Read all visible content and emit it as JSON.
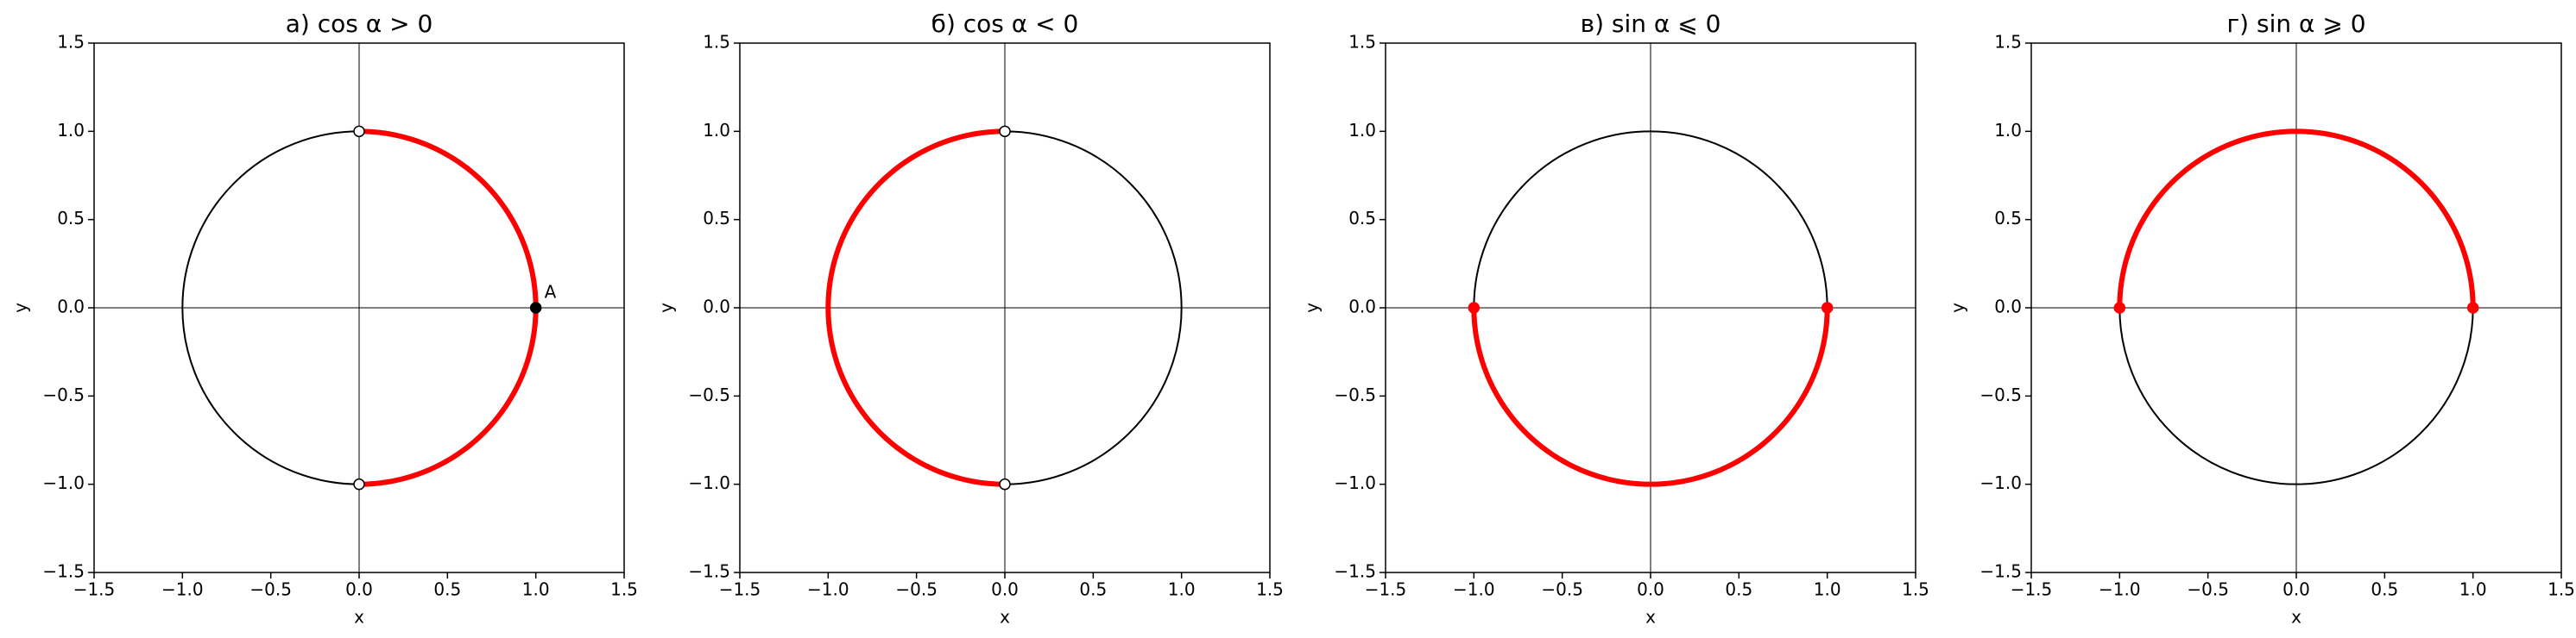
{
  "chart_data": [
    {
      "type": "unit-circle",
      "title": "а) cos α > 0",
      "xlabel": "x",
      "ylabel": "y",
      "xlim": [
        -1.5,
        1.5
      ],
      "ylim": [
        -1.5,
        1.5
      ],
      "xticks": [
        {
          "value": -1.5,
          "label": "−1.5"
        },
        {
          "value": -1,
          "label": "−1.0"
        },
        {
          "value": -0.5,
          "label": "−0.5"
        },
        {
          "value": 0,
          "label": "0.0"
        },
        0.5,
        {
          "value": 1,
          "label": "1.0"
        },
        1.5
      ],
      "yticks": [
        {
          "value": -1.5,
          "label": "−1.5"
        },
        {
          "value": -1,
          "label": "−1.0"
        },
        {
          "value": -0.5,
          "label": "−0.5"
        },
        {
          "value": 0,
          "label": "0.0"
        },
        0.5,
        {
          "value": 1,
          "label": "1.0"
        },
        1.5
      ],
      "circle": {
        "radius": 1,
        "color": "#000000"
      },
      "arc": {
        "start": -90,
        "end": 90,
        "color": "#ff0000"
      },
      "points": [
        {
          "x": 0,
          "y": 1,
          "color": "#ffffff",
          "edgecolor": "#000000"
        },
        {
          "x": 0,
          "y": -1,
          "color": "#ffffff",
          "edgecolor": "#000000"
        },
        {
          "x": 1,
          "y": 0,
          "color": "#000000",
          "edgecolor": "#000000"
        }
      ],
      "annotations": [
        {
          "text": "A",
          "x": 1,
          "y": 0
        }
      ]
    },
    {
      "type": "unit-circle",
      "title": "б) cos α < 0",
      "xlabel": "x",
      "ylabel": "y",
      "xlim": [
        -1.5,
        1.5
      ],
      "ylim": [
        -1.5,
        1.5
      ],
      "xticks": [
        {
          "value": -1.5,
          "label": "−1.5"
        },
        {
          "value": -1,
          "label": "−1.0"
        },
        {
          "value": -0.5,
          "label": "−0.5"
        },
        {
          "value": 0,
          "label": "0.0"
        },
        0.5,
        {
          "value": 1,
          "label": "1.0"
        },
        1.5
      ],
      "yticks": [
        {
          "value": -1.5,
          "label": "−1.5"
        },
        {
          "value": -1,
          "label": "−1.0"
        },
        {
          "value": -0.5,
          "label": "−0.5"
        },
        {
          "value": 0,
          "label": "0.0"
        },
        0.5,
        {
          "value": 1,
          "label": "1.0"
        },
        1.5
      ],
      "circle": {
        "radius": 1,
        "color": "#000000"
      },
      "arc": {
        "start": 90,
        "end": 270,
        "color": "#ff0000"
      },
      "points": [
        {
          "x": 0,
          "y": 1,
          "color": "#ffffff",
          "edgecolor": "#000000"
        },
        {
          "x": 0,
          "y": -1,
          "color": "#ffffff",
          "edgecolor": "#000000"
        }
      ],
      "annotations": []
    },
    {
      "type": "unit-circle",
      "title": "в) sin α ⩽ 0",
      "xlabel": "x",
      "ylabel": "y",
      "xlim": [
        -1.5,
        1.5
      ],
      "ylim": [
        -1.5,
        1.5
      ],
      "xticks": [
        {
          "value": -1.5,
          "label": "−1.5"
        },
        {
          "value": -1,
          "label": "−1.0"
        },
        {
          "value": -0.5,
          "label": "−0.5"
        },
        {
          "value": 0,
          "label": "0.0"
        },
        0.5,
        {
          "value": 1,
          "label": "1.0"
        },
        1.5
      ],
      "yticks": [
        {
          "value": -1.5,
          "label": "−1.5"
        },
        {
          "value": -1,
          "label": "−1.0"
        },
        {
          "value": -0.5,
          "label": "−0.5"
        },
        {
          "value": 0,
          "label": "0.0"
        },
        0.5,
        {
          "value": 1,
          "label": "1.0"
        },
        1.5
      ],
      "circle": {
        "radius": 1,
        "color": "#000000"
      },
      "arc": {
        "start": 180,
        "end": 360,
        "color": "#ff0000"
      },
      "points": [
        {
          "x": -1,
          "y": 0,
          "color": "#ff0000",
          "edgecolor": "#ff0000"
        },
        {
          "x": 1,
          "y": 0,
          "color": "#ff0000",
          "edgecolor": "#ff0000"
        }
      ],
      "annotations": []
    },
    {
      "type": "unit-circle",
      "title": "г) sin α ⩾ 0",
      "xlabel": "x",
      "ylabel": "y",
      "xlim": [
        -1.5,
        1.5
      ],
      "ylim": [
        -1.5,
        1.5
      ],
      "xticks": [
        {
          "value": -1.5,
          "label": "−1.5"
        },
        {
          "value": -1,
          "label": "−1.0"
        },
        {
          "value": -0.5,
          "label": "−0.5"
        },
        {
          "value": 0,
          "label": "0.0"
        },
        0.5,
        {
          "value": 1,
          "label": "1.0"
        },
        1.5
      ],
      "yticks": [
        {
          "value": -1.5,
          "label": "−1.5"
        },
        {
          "value": -1,
          "label": "−1.0"
        },
        {
          "value": -0.5,
          "label": "−0.5"
        },
        {
          "value": 0,
          "label": "0.0"
        },
        0.5,
        {
          "value": 1,
          "label": "1.0"
        },
        1.5
      ],
      "circle": {
        "radius": 1,
        "color": "#000000"
      },
      "arc": {
        "start": 0,
        "end": 180,
        "color": "#ff0000"
      },
      "points": [
        {
          "x": -1,
          "y": 0,
          "color": "#ff0000",
          "edgecolor": "#ff0000"
        },
        {
          "x": 1,
          "y": 0,
          "color": "#ff0000",
          "edgecolor": "#ff0000"
        }
      ],
      "annotations": []
    }
  ]
}
